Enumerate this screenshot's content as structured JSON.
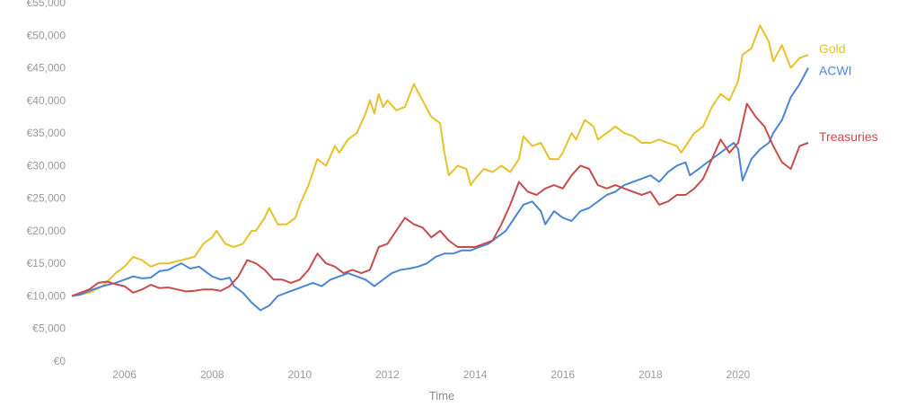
{
  "chart_data": {
    "type": "line",
    "xlabel": "Time",
    "ylabel": "",
    "xlim": [
      2004.8,
      2021.7
    ],
    "ylim": [
      0,
      55000
    ],
    "x_ticks": [
      2006,
      2008,
      2010,
      2012,
      2014,
      2016,
      2018,
      2020
    ],
    "x_tick_labels": [
      "2006",
      "2008",
      "2010",
      "2012",
      "2014",
      "2016",
      "2018",
      "2020"
    ],
    "y_ticks": [
      0,
      5000,
      10000,
      15000,
      20000,
      25000,
      30000,
      35000,
      40000,
      45000,
      50000,
      55000
    ],
    "y_tick_labels": [
      "€0",
      "€5,000",
      "€10,000",
      "€15,000",
      "€20,000",
      "€25,000",
      "€30,000",
      "€35,000",
      "€40,000",
      "€45,000",
      "€50,000",
      "€55,000"
    ],
    "grid": false,
    "legend": "inline at line ends",
    "series": [
      {
        "name": "Gold",
        "color": "#e8c12a",
        "points": [
          [
            2004.8,
            10000
          ],
          [
            2005.2,
            10500
          ],
          [
            2005.5,
            11500
          ],
          [
            2005.8,
            13500
          ],
          [
            2006.0,
            14500
          ],
          [
            2006.2,
            16000
          ],
          [
            2006.4,
            15500
          ],
          [
            2006.6,
            14500
          ],
          [
            2006.8,
            15000
          ],
          [
            2007.0,
            15000
          ],
          [
            2007.3,
            15500
          ],
          [
            2007.6,
            16000
          ],
          [
            2007.8,
            18000
          ],
          [
            2008.0,
            19000
          ],
          [
            2008.1,
            20000
          ],
          [
            2008.3,
            18000
          ],
          [
            2008.5,
            17500
          ],
          [
            2008.7,
            18000
          ],
          [
            2008.9,
            20000
          ],
          [
            2009.0,
            20000
          ],
          [
            2009.2,
            22000
          ],
          [
            2009.3,
            23500
          ],
          [
            2009.5,
            21000
          ],
          [
            2009.7,
            21000
          ],
          [
            2009.9,
            22000
          ],
          [
            2010.0,
            24000
          ],
          [
            2010.2,
            27000
          ],
          [
            2010.3,
            29000
          ],
          [
            2010.4,
            31000
          ],
          [
            2010.6,
            30000
          ],
          [
            2010.8,
            33000
          ],
          [
            2010.9,
            32000
          ],
          [
            2011.1,
            34000
          ],
          [
            2011.3,
            35000
          ],
          [
            2011.5,
            38000
          ],
          [
            2011.6,
            40000
          ],
          [
            2011.7,
            38000
          ],
          [
            2011.8,
            41000
          ],
          [
            2011.9,
            39000
          ],
          [
            2012.0,
            40000
          ],
          [
            2012.2,
            38500
          ],
          [
            2012.4,
            39000
          ],
          [
            2012.6,
            42500
          ],
          [
            2012.8,
            40000
          ],
          [
            2013.0,
            37500
          ],
          [
            2013.2,
            36500
          ],
          [
            2013.3,
            32000
          ],
          [
            2013.4,
            28500
          ],
          [
            2013.6,
            30000
          ],
          [
            2013.8,
            29500
          ],
          [
            2013.9,
            27000
          ],
          [
            2014.0,
            28000
          ],
          [
            2014.2,
            29500
          ],
          [
            2014.4,
            29000
          ],
          [
            2014.6,
            30000
          ],
          [
            2014.8,
            29000
          ],
          [
            2015.0,
            31000
          ],
          [
            2015.1,
            34500
          ],
          [
            2015.3,
            33000
          ],
          [
            2015.5,
            33500
          ],
          [
            2015.7,
            31000
          ],
          [
            2015.9,
            31000
          ],
          [
            2016.0,
            32000
          ],
          [
            2016.2,
            35000
          ],
          [
            2016.3,
            34000
          ],
          [
            2016.5,
            37000
          ],
          [
            2016.7,
            36000
          ],
          [
            2016.8,
            34000
          ],
          [
            2017.0,
            35000
          ],
          [
            2017.2,
            36000
          ],
          [
            2017.4,
            35000
          ],
          [
            2017.6,
            34500
          ],
          [
            2017.8,
            33500
          ],
          [
            2018.0,
            33500
          ],
          [
            2018.2,
            34000
          ],
          [
            2018.4,
            33500
          ],
          [
            2018.6,
            33000
          ],
          [
            2018.7,
            32000
          ],
          [
            2018.9,
            34000
          ],
          [
            2019.0,
            35000
          ],
          [
            2019.2,
            36000
          ],
          [
            2019.4,
            39000
          ],
          [
            2019.6,
            41000
          ],
          [
            2019.8,
            40000
          ],
          [
            2020.0,
            43000
          ],
          [
            2020.1,
            47000
          ],
          [
            2020.3,
            48000
          ],
          [
            2020.5,
            51500
          ],
          [
            2020.7,
            49000
          ],
          [
            2020.8,
            46000
          ],
          [
            2021.0,
            48500
          ],
          [
            2021.2,
            45000
          ],
          [
            2021.4,
            46500
          ],
          [
            2021.6,
            47000
          ]
        ]
      },
      {
        "name": "ACWI",
        "color": "#4a86d3",
        "points": [
          [
            2004.8,
            10000
          ],
          [
            2005.0,
            10200
          ],
          [
            2005.2,
            10800
          ],
          [
            2005.5,
            11500
          ],
          [
            2005.8,
            12000
          ],
          [
            2006.0,
            12500
          ],
          [
            2006.2,
            13000
          ],
          [
            2006.4,
            12700
          ],
          [
            2006.6,
            12800
          ],
          [
            2006.8,
            13800
          ],
          [
            2007.0,
            14000
          ],
          [
            2007.2,
            14700
          ],
          [
            2007.3,
            15000
          ],
          [
            2007.5,
            14200
          ],
          [
            2007.7,
            14500
          ],
          [
            2007.9,
            13500
          ],
          [
            2008.0,
            13000
          ],
          [
            2008.2,
            12500
          ],
          [
            2008.4,
            12800
          ],
          [
            2008.5,
            11500
          ],
          [
            2008.7,
            10500
          ],
          [
            2008.9,
            9000
          ],
          [
            2009.1,
            7800
          ],
          [
            2009.3,
            8500
          ],
          [
            2009.5,
            10000
          ],
          [
            2009.7,
            10500
          ],
          [
            2009.9,
            11000
          ],
          [
            2010.1,
            11500
          ],
          [
            2010.3,
            12000
          ],
          [
            2010.5,
            11500
          ],
          [
            2010.7,
            12500
          ],
          [
            2010.9,
            13000
          ],
          [
            2011.1,
            13500
          ],
          [
            2011.3,
            13000
          ],
          [
            2011.5,
            12500
          ],
          [
            2011.7,
            11500
          ],
          [
            2011.9,
            12500
          ],
          [
            2012.1,
            13500
          ],
          [
            2012.3,
            14000
          ],
          [
            2012.5,
            14200
          ],
          [
            2012.7,
            14500
          ],
          [
            2012.9,
            15000
          ],
          [
            2013.1,
            16000
          ],
          [
            2013.3,
            16500
          ],
          [
            2013.5,
            16500
          ],
          [
            2013.7,
            17000
          ],
          [
            2013.9,
            17000
          ],
          [
            2014.1,
            17500
          ],
          [
            2014.3,
            18000
          ],
          [
            2014.5,
            19000
          ],
          [
            2014.7,
            20000
          ],
          [
            2014.9,
            22000
          ],
          [
            2015.1,
            24000
          ],
          [
            2015.3,
            24500
          ],
          [
            2015.5,
            23000
          ],
          [
            2015.6,
            21000
          ],
          [
            2015.8,
            23000
          ],
          [
            2016.0,
            22000
          ],
          [
            2016.2,
            21500
          ],
          [
            2016.4,
            23000
          ],
          [
            2016.6,
            23500
          ],
          [
            2016.8,
            24500
          ],
          [
            2017.0,
            25500
          ],
          [
            2017.2,
            26000
          ],
          [
            2017.4,
            27000
          ],
          [
            2017.6,
            27500
          ],
          [
            2017.8,
            28000
          ],
          [
            2018.0,
            28500
          ],
          [
            2018.2,
            27500
          ],
          [
            2018.4,
            29000
          ],
          [
            2018.6,
            30000
          ],
          [
            2018.8,
            30500
          ],
          [
            2018.9,
            28500
          ],
          [
            2019.1,
            29500
          ],
          [
            2019.3,
            30500
          ],
          [
            2019.5,
            31500
          ],
          [
            2019.7,
            32500
          ],
          [
            2019.9,
            33500
          ],
          [
            2020.0,
            32500
          ],
          [
            2020.1,
            27700
          ],
          [
            2020.3,
            31000
          ],
          [
            2020.5,
            32500
          ],
          [
            2020.7,
            33500
          ],
          [
            2020.8,
            35000
          ],
          [
            2021.0,
            37000
          ],
          [
            2021.2,
            40500
          ],
          [
            2021.4,
            42500
          ],
          [
            2021.6,
            45000
          ]
        ]
      },
      {
        "name": "Treasuries",
        "color": "#c94c4c",
        "points": [
          [
            2004.8,
            10000
          ],
          [
            2005.0,
            10500
          ],
          [
            2005.2,
            11000
          ],
          [
            2005.4,
            12000
          ],
          [
            2005.6,
            12200
          ],
          [
            2005.8,
            11800
          ],
          [
            2006.0,
            11500
          ],
          [
            2006.2,
            10500
          ],
          [
            2006.4,
            11000
          ],
          [
            2006.6,
            11700
          ],
          [
            2006.8,
            11200
          ],
          [
            2007.0,
            11300
          ],
          [
            2007.2,
            11000
          ],
          [
            2007.4,
            10700
          ],
          [
            2007.6,
            10800
          ],
          [
            2007.8,
            11000
          ],
          [
            2008.0,
            11000
          ],
          [
            2008.2,
            10800
          ],
          [
            2008.4,
            11500
          ],
          [
            2008.6,
            13000
          ],
          [
            2008.8,
            15500
          ],
          [
            2009.0,
            15000
          ],
          [
            2009.2,
            14000
          ],
          [
            2009.4,
            12500
          ],
          [
            2009.6,
            12500
          ],
          [
            2009.8,
            12000
          ],
          [
            2010.0,
            12500
          ],
          [
            2010.2,
            14000
          ],
          [
            2010.4,
            16500
          ],
          [
            2010.6,
            15000
          ],
          [
            2010.8,
            14500
          ],
          [
            2011.0,
            13500
          ],
          [
            2011.2,
            14000
          ],
          [
            2011.4,
            13500
          ],
          [
            2011.6,
            14000
          ],
          [
            2011.8,
            17500
          ],
          [
            2012.0,
            18000
          ],
          [
            2012.2,
            20000
          ],
          [
            2012.4,
            22000
          ],
          [
            2012.6,
            21000
          ],
          [
            2012.8,
            20500
          ],
          [
            2013.0,
            19000
          ],
          [
            2013.2,
            20000
          ],
          [
            2013.4,
            18500
          ],
          [
            2013.6,
            17500
          ],
          [
            2013.8,
            17500
          ],
          [
            2014.0,
            17500
          ],
          [
            2014.2,
            18000
          ],
          [
            2014.4,
            18500
          ],
          [
            2014.6,
            21000
          ],
          [
            2014.8,
            24000
          ],
          [
            2015.0,
            27500
          ],
          [
            2015.2,
            26000
          ],
          [
            2015.4,
            25500
          ],
          [
            2015.6,
            26500
          ],
          [
            2015.8,
            27000
          ],
          [
            2016.0,
            26500
          ],
          [
            2016.2,
            28500
          ],
          [
            2016.4,
            30000
          ],
          [
            2016.6,
            29500
          ],
          [
            2016.8,
            27000
          ],
          [
            2017.0,
            26500
          ],
          [
            2017.2,
            27000
          ],
          [
            2017.4,
            26500
          ],
          [
            2017.6,
            26000
          ],
          [
            2017.8,
            25500
          ],
          [
            2018.0,
            26000
          ],
          [
            2018.2,
            24000
          ],
          [
            2018.4,
            24500
          ],
          [
            2018.6,
            25500
          ],
          [
            2018.8,
            25500
          ],
          [
            2019.0,
            26500
          ],
          [
            2019.2,
            28000
          ],
          [
            2019.4,
            31000
          ],
          [
            2019.6,
            34000
          ],
          [
            2019.8,
            32000
          ],
          [
            2020.0,
            33500
          ],
          [
            2020.2,
            39500
          ],
          [
            2020.4,
            37500
          ],
          [
            2020.6,
            36000
          ],
          [
            2020.8,
            33000
          ],
          [
            2021.0,
            30500
          ],
          [
            2021.2,
            29500
          ],
          [
            2021.4,
            33000
          ],
          [
            2021.6,
            33500
          ]
        ]
      }
    ]
  }
}
